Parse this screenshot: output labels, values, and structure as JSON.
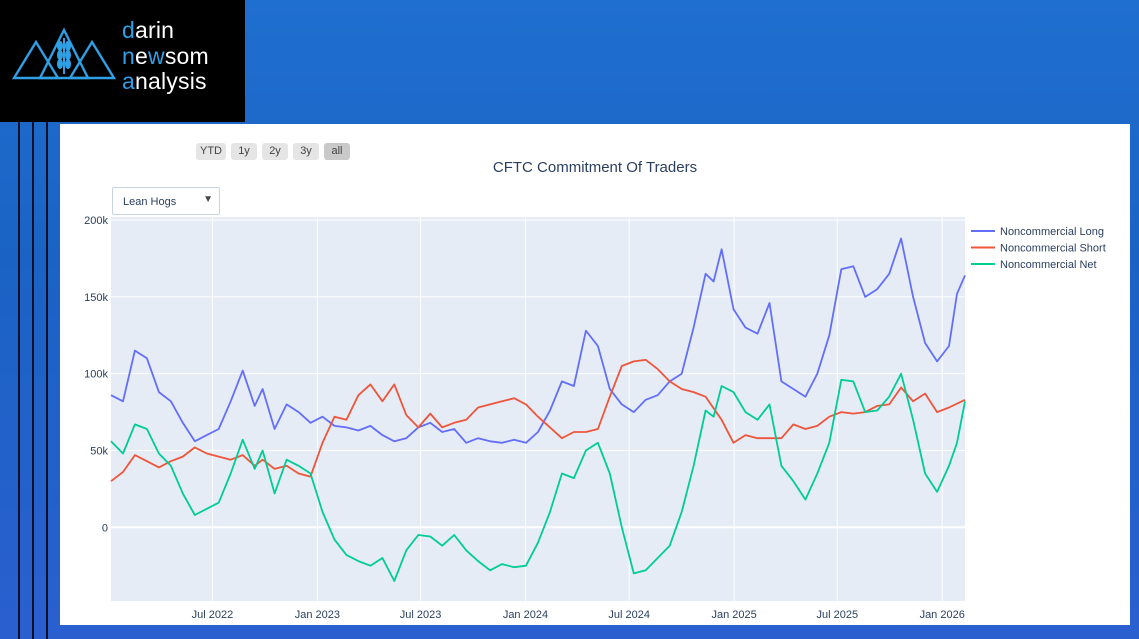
{
  "brand": {
    "line1_hl": "d",
    "line1": "arin",
    "line2_hl1": "n",
    "line2_mid": "e",
    "line2_hl2": "w",
    "line2": "som",
    "line3_hl": "a",
    "line3": "nalysis"
  },
  "range_selector": [
    "YTD",
    "1y",
    "2y",
    "3y",
    "all"
  ],
  "range_selector_active": "all",
  "dropdown": {
    "selected": "Lean Hogs",
    "arrow_icon": "caret-down-icon"
  },
  "colors": {
    "long": "#636efa",
    "short": "#ef553b",
    "net": "#00cc96",
    "plot_bg": "#e5ecf6"
  },
  "chart_data": {
    "type": "line",
    "title": "CFTC Commitment Of Traders",
    "xlabel": "",
    "ylabel": "",
    "x_range": [
      "2022-01-04",
      "2026-02-10"
    ],
    "y_range": [
      -48000,
      202000
    ],
    "y_ticks": [
      0,
      50000,
      100000,
      150000,
      200000
    ],
    "y_tick_labels": [
      "0",
      "50k",
      "100k",
      "150k",
      "200k"
    ],
    "x_ticks": [
      "2022-07-01",
      "2023-01-01",
      "2023-07-01",
      "2024-01-01",
      "2024-07-01",
      "2025-01-01",
      "2025-07-01",
      "2026-01-01"
    ],
    "x_tick_labels": [
      "Jul 2022",
      "Jan 2023",
      "Jul 2023",
      "Jan 2024",
      "Jul 2024",
      "Jan 2025",
      "Jul 2025",
      "Jan 2026"
    ],
    "legend_position": "right",
    "series": [
      {
        "name": "Noncommercial Long",
        "color": "#636efa",
        "points": [
          [
            "2022-01-04",
            86000
          ],
          [
            "2022-01-25",
            82000
          ],
          [
            "2022-02-15",
            115000
          ],
          [
            "2022-03-08",
            110000
          ],
          [
            "2022-03-29",
            88000
          ],
          [
            "2022-04-19",
            82000
          ],
          [
            "2022-05-10",
            68000
          ],
          [
            "2022-05-31",
            56000
          ],
          [
            "2022-06-21",
            60000
          ],
          [
            "2022-07-12",
            64000
          ],
          [
            "2022-08-02",
            82000
          ],
          [
            "2022-08-23",
            102000
          ],
          [
            "2022-09-13",
            79000
          ],
          [
            "2022-09-27",
            90000
          ],
          [
            "2022-10-18",
            64000
          ],
          [
            "2022-11-08",
            80000
          ],
          [
            "2022-11-29",
            75000
          ],
          [
            "2022-12-20",
            68000
          ],
          [
            "2023-01-10",
            72000
          ],
          [
            "2023-01-31",
            66000
          ],
          [
            "2023-02-21",
            65000
          ],
          [
            "2023-03-14",
            63000
          ],
          [
            "2023-04-04",
            66000
          ],
          [
            "2023-04-25",
            60000
          ],
          [
            "2023-05-16",
            56000
          ],
          [
            "2023-06-06",
            58000
          ],
          [
            "2023-06-27",
            65000
          ],
          [
            "2023-07-18",
            68000
          ],
          [
            "2023-08-08",
            62000
          ],
          [
            "2023-08-29",
            64000
          ],
          [
            "2023-09-19",
            55000
          ],
          [
            "2023-10-10",
            58000
          ],
          [
            "2023-10-31",
            56000
          ],
          [
            "2023-11-21",
            55000
          ],
          [
            "2023-12-12",
            57000
          ],
          [
            "2024-01-02",
            55000
          ],
          [
            "2024-01-23",
            62000
          ],
          [
            "2024-02-13",
            76000
          ],
          [
            "2024-03-05",
            95000
          ],
          [
            "2024-03-26",
            92000
          ],
          [
            "2024-04-16",
            128000
          ],
          [
            "2024-05-07",
            118000
          ],
          [
            "2024-05-28",
            90000
          ],
          [
            "2024-06-18",
            80000
          ],
          [
            "2024-07-09",
            75000
          ],
          [
            "2024-07-30",
            83000
          ],
          [
            "2024-08-20",
            86000
          ],
          [
            "2024-09-10",
            95000
          ],
          [
            "2024-10-01",
            100000
          ],
          [
            "2024-10-22",
            130000
          ],
          [
            "2024-11-12",
            165000
          ],
          [
            "2024-11-26",
            160000
          ],
          [
            "2024-12-10",
            181000
          ],
          [
            "2024-12-31",
            142000
          ],
          [
            "2025-01-21",
            130000
          ],
          [
            "2025-02-11",
            126000
          ],
          [
            "2025-03-04",
            146000
          ],
          [
            "2025-03-25",
            95000
          ],
          [
            "2025-04-15",
            90000
          ],
          [
            "2025-05-06",
            85000
          ],
          [
            "2025-05-27",
            100000
          ],
          [
            "2025-06-17",
            125000
          ],
          [
            "2025-07-08",
            168000
          ],
          [
            "2025-07-29",
            170000
          ],
          [
            "2025-08-19",
            150000
          ],
          [
            "2025-09-09",
            155000
          ],
          [
            "2025-09-30",
            165000
          ],
          [
            "2025-10-21",
            188000
          ],
          [
            "2025-11-11",
            150000
          ],
          [
            "2025-12-02",
            120000
          ],
          [
            "2025-12-23",
            108000
          ],
          [
            "2026-01-13",
            118000
          ],
          [
            "2026-01-27",
            152000
          ],
          [
            "2026-02-10",
            164000
          ]
        ]
      },
      {
        "name": "Noncommercial Short",
        "color": "#ef553b",
        "points": [
          [
            "2022-01-04",
            30000
          ],
          [
            "2022-01-25",
            36000
          ],
          [
            "2022-02-15",
            47000
          ],
          [
            "2022-03-08",
            43000
          ],
          [
            "2022-03-29",
            39000
          ],
          [
            "2022-04-19",
            43000
          ],
          [
            "2022-05-10",
            46000
          ],
          [
            "2022-05-31",
            52000
          ],
          [
            "2022-06-21",
            48000
          ],
          [
            "2022-07-12",
            46000
          ],
          [
            "2022-08-02",
            44000
          ],
          [
            "2022-08-23",
            47000
          ],
          [
            "2022-09-13",
            40000
          ],
          [
            "2022-09-27",
            44000
          ],
          [
            "2022-10-18",
            38000
          ],
          [
            "2022-11-08",
            40000
          ],
          [
            "2022-11-29",
            35000
          ],
          [
            "2022-12-20",
            33000
          ],
          [
            "2023-01-10",
            55000
          ],
          [
            "2023-01-31",
            72000
          ],
          [
            "2023-02-21",
            70000
          ],
          [
            "2023-03-14",
            86000
          ],
          [
            "2023-04-04",
            93000
          ],
          [
            "2023-04-25",
            82000
          ],
          [
            "2023-05-16",
            93000
          ],
          [
            "2023-06-06",
            73000
          ],
          [
            "2023-06-27",
            65000
          ],
          [
            "2023-07-18",
            74000
          ],
          [
            "2023-08-08",
            65000
          ],
          [
            "2023-08-29",
            68000
          ],
          [
            "2023-09-19",
            70000
          ],
          [
            "2023-10-10",
            78000
          ],
          [
            "2023-11-21",
            82000
          ],
          [
            "2023-12-12",
            84000
          ],
          [
            "2024-01-02",
            80000
          ],
          [
            "2024-01-23",
            72000
          ],
          [
            "2024-02-13",
            65000
          ],
          [
            "2024-03-05",
            58000
          ],
          [
            "2024-03-26",
            62000
          ],
          [
            "2024-04-16",
            62000
          ],
          [
            "2024-05-07",
            64000
          ],
          [
            "2024-05-28",
            85000
          ],
          [
            "2024-06-18",
            105000
          ],
          [
            "2024-07-09",
            108000
          ],
          [
            "2024-07-30",
            109000
          ],
          [
            "2024-08-20",
            103000
          ],
          [
            "2024-09-10",
            95000
          ],
          [
            "2024-10-01",
            90000
          ],
          [
            "2024-10-22",
            88000
          ],
          [
            "2024-11-12",
            85000
          ],
          [
            "2024-12-10",
            70000
          ],
          [
            "2024-12-31",
            55000
          ],
          [
            "2025-01-21",
            60000
          ],
          [
            "2025-02-11",
            58000
          ],
          [
            "2025-03-04",
            58000
          ],
          [
            "2025-03-25",
            58000
          ],
          [
            "2025-04-15",
            67000
          ],
          [
            "2025-05-06",
            64000
          ],
          [
            "2025-05-27",
            66000
          ],
          [
            "2025-06-17",
            72000
          ],
          [
            "2025-07-08",
            75000
          ],
          [
            "2025-07-29",
            74000
          ],
          [
            "2025-08-19",
            75000
          ],
          [
            "2025-09-09",
            79000
          ],
          [
            "2025-09-30",
            80000
          ],
          [
            "2025-10-21",
            91000
          ],
          [
            "2025-11-11",
            82000
          ],
          [
            "2025-12-02",
            87000
          ],
          [
            "2025-12-23",
            75000
          ],
          [
            "2026-01-13",
            78000
          ],
          [
            "2026-02-10",
            83000
          ]
        ]
      },
      {
        "name": "Noncommercial Net",
        "color": "#00cc96",
        "points": [
          [
            "2022-01-04",
            56000
          ],
          [
            "2022-01-25",
            48000
          ],
          [
            "2022-02-15",
            67000
          ],
          [
            "2022-03-08",
            64000
          ],
          [
            "2022-03-29",
            48000
          ],
          [
            "2022-04-19",
            40000
          ],
          [
            "2022-05-10",
            22000
          ],
          [
            "2022-05-31",
            8000
          ],
          [
            "2022-06-21",
            12000
          ],
          [
            "2022-07-12",
            16000
          ],
          [
            "2022-08-02",
            35000
          ],
          [
            "2022-08-23",
            57000
          ],
          [
            "2022-09-13",
            38000
          ],
          [
            "2022-09-27",
            50000
          ],
          [
            "2022-10-18",
            22000
          ],
          [
            "2022-11-08",
            44000
          ],
          [
            "2022-11-29",
            40000
          ],
          [
            "2022-12-20",
            35000
          ],
          [
            "2023-01-10",
            10000
          ],
          [
            "2023-01-31",
            -8000
          ],
          [
            "2023-02-21",
            -18000
          ],
          [
            "2023-03-14",
            -22000
          ],
          [
            "2023-04-04",
            -25000
          ],
          [
            "2023-04-25",
            -20000
          ],
          [
            "2023-05-16",
            -35000
          ],
          [
            "2023-06-06",
            -15000
          ],
          [
            "2023-06-27",
            -5000
          ],
          [
            "2023-07-18",
            -6000
          ],
          [
            "2023-08-08",
            -12000
          ],
          [
            "2023-08-29",
            -5000
          ],
          [
            "2023-09-19",
            -15000
          ],
          [
            "2023-10-10",
            -22000
          ],
          [
            "2023-10-31",
            -28000
          ],
          [
            "2023-11-21",
            -24000
          ],
          [
            "2023-12-12",
            -26000
          ],
          [
            "2024-01-02",
            -25000
          ],
          [
            "2024-01-23",
            -10000
          ],
          [
            "2024-02-13",
            10000
          ],
          [
            "2024-03-05",
            35000
          ],
          [
            "2024-03-26",
            32000
          ],
          [
            "2024-04-16",
            50000
          ],
          [
            "2024-05-07",
            55000
          ],
          [
            "2024-05-28",
            35000
          ],
          [
            "2024-06-18",
            0
          ],
          [
            "2024-07-09",
            -30000
          ],
          [
            "2024-07-30",
            -28000
          ],
          [
            "2024-08-20",
            -20000
          ],
          [
            "2024-09-10",
            -12000
          ],
          [
            "2024-10-01",
            10000
          ],
          [
            "2024-10-22",
            40000
          ],
          [
            "2024-11-12",
            76000
          ],
          [
            "2024-11-26",
            72000
          ],
          [
            "2024-12-10",
            92000
          ],
          [
            "2024-12-31",
            88000
          ],
          [
            "2025-01-21",
            75000
          ],
          [
            "2025-02-11",
            70000
          ],
          [
            "2025-03-04",
            80000
          ],
          [
            "2025-03-25",
            40000
          ],
          [
            "2025-04-15",
            30000
          ],
          [
            "2025-05-06",
            18000
          ],
          [
            "2025-05-27",
            35000
          ],
          [
            "2025-06-17",
            55000
          ],
          [
            "2025-07-08",
            96000
          ],
          [
            "2025-07-29",
            95000
          ],
          [
            "2025-08-19",
            75000
          ],
          [
            "2025-09-09",
            76000
          ],
          [
            "2025-09-30",
            85000
          ],
          [
            "2025-10-21",
            100000
          ],
          [
            "2025-11-11",
            70000
          ],
          [
            "2025-12-02",
            35000
          ],
          [
            "2025-12-23",
            23000
          ],
          [
            "2026-01-13",
            40000
          ],
          [
            "2026-01-27",
            55000
          ],
          [
            "2026-02-10",
            82000
          ]
        ]
      }
    ]
  }
}
